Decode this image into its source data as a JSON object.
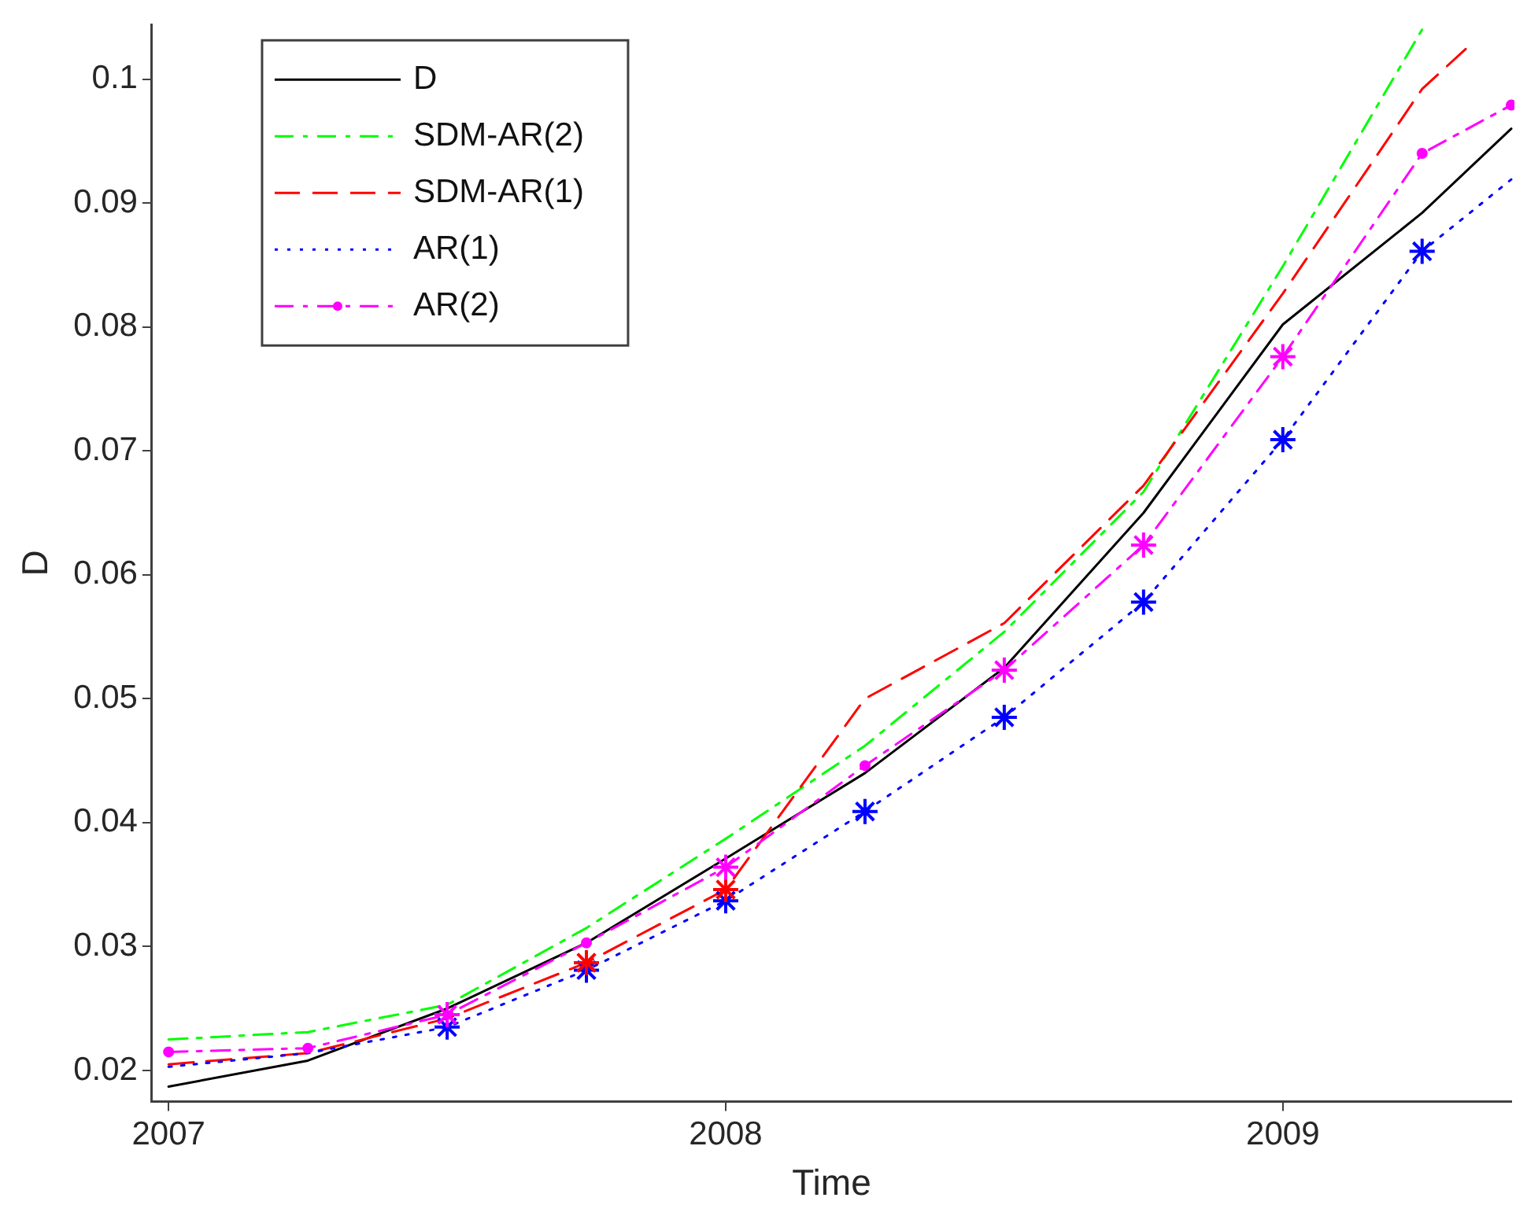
{
  "chart_data": {
    "type": "line",
    "xlabel": "Time",
    "ylabel": "D",
    "xlim": [
      2006.97,
      2009.41
    ],
    "xticks": [
      2007,
      2008,
      2009
    ],
    "ylim": [
      0.0175,
      0.1044
    ],
    "yticks": [
      0.02,
      0.03,
      0.04,
      0.05,
      0.06,
      0.07,
      0.08,
      0.09,
      0.1
    ],
    "grid": false,
    "legend": "top left",
    "series": [
      {
        "name": "D",
        "color": "#000000",
        "line_style": "solid",
        "marker": "none",
        "x": [
          2007,
          2007.25,
          2007.5,
          2007.75,
          2008,
          2008.25,
          2008.5,
          2008.75,
          2009,
          2009.25,
          2009.41
        ],
        "values": [
          0.0187,
          0.0208,
          0.025,
          0.0303,
          0.0371,
          0.044,
          0.0525,
          0.065,
          0.0802,
          0.0892,
          0.096
        ]
      },
      {
        "name": "SDM-AR(2)",
        "color": "#00ff00",
        "line_style": "dashdot",
        "marker": "none",
        "x": [
          2007,
          2007.25,
          2007.5,
          2007.75,
          2008,
          2008.25,
          2008.5,
          2008.75,
          2009,
          2009.25
        ],
        "values": [
          0.0225,
          0.0231,
          0.0253,
          0.0315,
          0.0387,
          0.0462,
          0.0554,
          0.0667,
          0.0849,
          0.104
        ]
      },
      {
        "name": "SDM-AR(1)",
        "color": "#ff0000",
        "line_style": "dashed",
        "marker": "none",
        "x": [
          2007,
          2007.25,
          2007.5,
          2007.75,
          2008,
          2008.25,
          2008.5,
          2008.75,
          2009,
          2009.25,
          2009.33
        ],
        "values": [
          0.0205,
          0.0214,
          0.0242,
          0.0287,
          0.0346,
          0.05,
          0.0561,
          0.0672,
          0.0827,
          0.0992,
          0.1025
        ]
      },
      {
        "name": "AR(1)",
        "color": "#0000ff",
        "line_style": "dotted",
        "marker": "none",
        "x": [
          2007,
          2007.25,
          2007.5,
          2007.75,
          2008,
          2008.25,
          2008.5,
          2008.75,
          2009,
          2009.25,
          2009.41
        ],
        "values": [
          0.0203,
          0.0214,
          0.0235,
          0.0281,
          0.0337,
          0.0409,
          0.0485,
          0.0578,
          0.0709,
          0.0861,
          0.0919
        ]
      },
      {
        "name": "AR(2)",
        "color": "#ff00ff",
        "line_style": "dashdot",
        "marker": "circle",
        "x": [
          2007,
          2007.25,
          2007.5,
          2007.75,
          2008,
          2008.25,
          2008.5,
          2008.75,
          2009,
          2009.25,
          2009.41
        ],
        "values": [
          0.0215,
          0.0218,
          0.0245,
          0.0303,
          0.0364,
          0.0446,
          0.0523,
          0.0624,
          0.0776,
          0.094,
          0.0979
        ]
      },
      {
        "type": "scatter",
        "color": "#0000ff",
        "marker": "cross",
        "x": [
          2007.5,
          2007.75,
          2008,
          2008.25,
          2008.5,
          2008.75,
          2009,
          2009.25
        ],
        "values": [
          0.0235,
          0.0281,
          0.0337,
          0.0409,
          0.0485,
          0.0578,
          0.0709,
          0.0861
        ]
      },
      {
        "type": "scatter",
        "color": "#ff0000",
        "marker": "cross",
        "x": [
          2007.75,
          2008
        ],
        "values": [
          0.0287,
          0.0346
        ]
      },
      {
        "type": "scatter",
        "color": "#ff00ff",
        "marker": "cross",
        "x": [
          2007.5,
          2008,
          2008.5,
          2008.75,
          2009
        ],
        "values": [
          0.0245,
          0.0364,
          0.0523,
          0.0624,
          0.0776
        ]
      }
    ]
  }
}
